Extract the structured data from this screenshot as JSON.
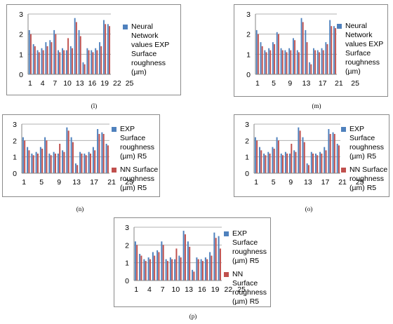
{
  "colors": {
    "exp": "#4f81bd",
    "nn": "#c0504d",
    "grid": "#b0b0b0",
    "axis": "#868686"
  },
  "y_ticks": [
    "0",
    "1",
    "2",
    "3"
  ],
  "chart_data": [
    {
      "type": "bar",
      "caption": "(l)",
      "ylim": [
        0,
        3
      ],
      "x_tick_labels": [
        "1",
        "4",
        "7",
        "10",
        "13",
        "16",
        "19",
        "22",
        "25"
      ],
      "legend": [
        "Neural Network values EXP Surface roughness (µm)"
      ],
      "series": [
        {
          "name": "Neural Network values EXP Surface roughness (µm)",
          "values": [
            2.2,
            1.5,
            1.2,
            1.3,
            1.6,
            1.7,
            2.2,
            1.2,
            1.3,
            1.2,
            1.4,
            2.8,
            2.2,
            0.6,
            1.3,
            1.2,
            1.3,
            1.6,
            2.7,
            2.5
          ]
        },
        {
          "name": "",
          "values": [
            2.0,
            1.4,
            1.1,
            1.2,
            1.4,
            1.6,
            2.0,
            1.1,
            1.2,
            1.8,
            1.3,
            2.6,
            1.9,
            0.5,
            1.2,
            1.1,
            1.2,
            1.4,
            2.5,
            2.4
          ]
        }
      ]
    },
    {
      "type": "bar",
      "caption": "(m)",
      "ylim": [
        0,
        3
      ],
      "x_tick_labels": [
        "1",
        "5",
        "9",
        "13",
        "17",
        "21",
        "25"
      ],
      "legend": [
        "Neural Network values EXP Surface roughness (µm)"
      ],
      "series": [
        {
          "name": "Neural Network values EXP Surface roughness (µm)",
          "values": [
            2.2,
            1.6,
            1.2,
            1.3,
            1.6,
            2.1,
            1.3,
            1.2,
            1.3,
            1.8,
            1.2,
            2.8,
            2.2,
            0.6,
            1.3,
            1.2,
            1.3,
            1.6,
            2.7,
            2.4
          ]
        },
        {
          "name": "",
          "values": [
            2.0,
            1.4,
            1.1,
            1.2,
            1.5,
            2.0,
            1.2,
            1.1,
            1.2,
            1.7,
            1.1,
            2.6,
            1.6,
            0.5,
            1.2,
            1.1,
            1.2,
            1.5,
            2.4,
            2.3
          ]
        }
      ]
    },
    {
      "type": "bar",
      "caption": "(n)",
      "ylim": [
        0,
        3
      ],
      "x_tick_labels": [
        "1",
        "5",
        "9",
        "13",
        "17",
        "21",
        "25"
      ],
      "legend": [
        "EXP Surface roughness (µm) R5",
        "NN Surface roughness (µm) R5"
      ],
      "series": [
        {
          "name": "EXP Surface roughness (µm) R5",
          "values": [
            2.2,
            1.6,
            1.2,
            1.3,
            1.6,
            2.2,
            1.2,
            1.3,
            1.2,
            1.4,
            2.8,
            2.2,
            0.6,
            1.3,
            1.2,
            1.3,
            1.6,
            2.7,
            2.5,
            1.8
          ]
        },
        {
          "name": "NN Surface roughness (µm) R5",
          "values": [
            2.0,
            1.4,
            1.1,
            1.2,
            1.5,
            2.0,
            1.1,
            1.2,
            1.8,
            1.3,
            2.6,
            1.9,
            0.5,
            1.2,
            1.1,
            1.2,
            1.4,
            2.4,
            2.4,
            1.7
          ]
        }
      ]
    },
    {
      "type": "bar",
      "caption": "(o)",
      "ylim": [
        0,
        3
      ],
      "x_tick_labels": [
        "1",
        "5",
        "9",
        "13",
        "17",
        "21",
        "25"
      ],
      "legend": [
        "EXP Surface roughness (µm) R5",
        "NN Surface roughness (µm) R5"
      ],
      "series": [
        {
          "name": "EXP Surface roughness (µm) R5",
          "values": [
            2.2,
            1.6,
            1.2,
            1.3,
            1.6,
            2.2,
            1.2,
            1.3,
            1.2,
            1.4,
            2.8,
            2.2,
            0.6,
            1.3,
            1.2,
            1.3,
            1.6,
            2.7,
            2.5,
            1.8
          ]
        },
        {
          "name": "NN Surface roughness (µm) R5",
          "values": [
            2.0,
            1.4,
            1.1,
            1.2,
            1.5,
            2.0,
            1.1,
            1.2,
            1.8,
            1.3,
            2.6,
            1.9,
            0.5,
            1.2,
            1.1,
            1.2,
            1.4,
            2.4,
            2.4,
            1.7
          ]
        }
      ]
    },
    {
      "type": "bar",
      "caption": "(p)",
      "ylim": [
        0,
        3
      ],
      "x_tick_labels": [
        "1",
        "4",
        "7",
        "10",
        "13",
        "16",
        "19",
        "22",
        "25"
      ],
      "legend": [
        "EXP Surface roughness (µm) R5",
        "NN Surface roughness (µm) R5"
      ],
      "series": [
        {
          "name": "EXP Surface roughness (µm) R5",
          "values": [
            2.2,
            1.5,
            1.2,
            1.3,
            1.6,
            1.7,
            2.2,
            1.2,
            1.3,
            1.2,
            1.4,
            2.8,
            2.2,
            0.6,
            1.3,
            1.2,
            1.3,
            1.6,
            2.7,
            2.5
          ]
        },
        {
          "name": "NN Surface roughness (µm) R5",
          "values": [
            2.0,
            1.4,
            1.1,
            1.2,
            1.4,
            1.6,
            2.0,
            1.1,
            1.2,
            1.8,
            1.3,
            2.6,
            1.9,
            0.5,
            1.2,
            1.1,
            1.2,
            1.4,
            2.4,
            1.8
          ]
        }
      ]
    }
  ]
}
